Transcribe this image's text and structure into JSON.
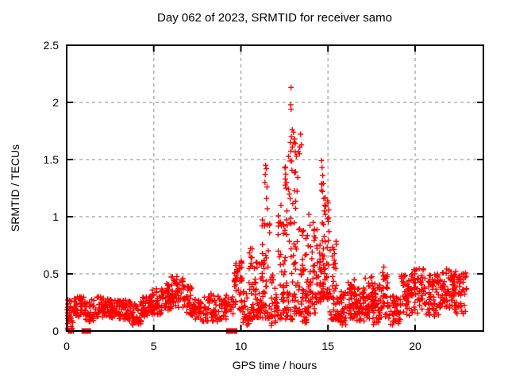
{
  "figure": {
    "background": "#ffffff"
  },
  "chart_data": {
    "type": "scatter",
    "title": "Day 062 of 2023, SRMTID for receiver samo",
    "xlabel": "GPS time / hours",
    "ylabel": "SRMTID / TECUs",
    "xlim": [
      0,
      23.92
    ],
    "ylim": [
      0,
      2.5
    ],
    "xticks": [
      0,
      5,
      10,
      15,
      20
    ],
    "yticks": [
      0,
      0.5,
      1,
      1.5,
      2,
      2.5
    ],
    "ytick_labels": [
      "0",
      "0.5",
      "1",
      "1.5",
      "2",
      "2.5"
    ],
    "xtick_labels": [
      "0",
      "5",
      "10",
      "15",
      "20"
    ],
    "grid": true,
    "legend": "none",
    "marker": "plus",
    "marker_size": 7,
    "marker_color": "#ff0000",
    "grid_color": "#b0b0b0",
    "axis_color": "#000000",
    "series_name": "SRMTID",
    "envelope_bins": [
      [
        0.02,
        0.12,
        0.0,
        0.31,
        12,
        1
      ],
      [
        0.12,
        0.4,
        0.02,
        0.28,
        20,
        0
      ],
      [
        0.4,
        1.0,
        0.12,
        0.3,
        40,
        0
      ],
      [
        1.0,
        1.6,
        0.08,
        0.28,
        42,
        0
      ],
      [
        1.6,
        2.3,
        0.12,
        0.3,
        48,
        0
      ],
      [
        2.3,
        3.0,
        0.1,
        0.28,
        48,
        0
      ],
      [
        3.0,
        3.6,
        0.1,
        0.27,
        45,
        0
      ],
      [
        3.6,
        4.3,
        0.05,
        0.26,
        45,
        0
      ],
      [
        4.3,
        4.9,
        0.12,
        0.31,
        45,
        0
      ],
      [
        4.9,
        5.5,
        0.14,
        0.37,
        45,
        0
      ],
      [
        5.5,
        6.0,
        0.18,
        0.43,
        40,
        0
      ],
      [
        6.0,
        6.7,
        0.2,
        0.48,
        48,
        0
      ],
      [
        6.7,
        7.2,
        0.14,
        0.4,
        35,
        0
      ],
      [
        7.2,
        7.9,
        0.08,
        0.28,
        42,
        0
      ],
      [
        7.9,
        8.7,
        0.08,
        0.33,
        48,
        0
      ],
      [
        8.7,
        9.15,
        0.1,
        0.3,
        28,
        0
      ],
      [
        9.15,
        9.6,
        0.15,
        0.33,
        18,
        0
      ],
      [
        9.6,
        10.1,
        0.18,
        0.62,
        40,
        0
      ],
      [
        10.1,
        10.45,
        0.05,
        0.35,
        24,
        0
      ],
      [
        10.45,
        10.7,
        0.1,
        0.72,
        24,
        3
      ],
      [
        10.7,
        11.2,
        0.12,
        0.62,
        50,
        0
      ],
      [
        11.2,
        11.7,
        0.1,
        1.0,
        45,
        5
      ],
      [
        11.7,
        12.1,
        0.04,
        0.5,
        30,
        4
      ],
      [
        12.1,
        12.5,
        0.1,
        1.05,
        36,
        4
      ],
      [
        12.5,
        13.0,
        0.1,
        1.6,
        55,
        5
      ],
      [
        13.0,
        13.5,
        0.15,
        1.75,
        55,
        5
      ],
      [
        13.5,
        13.8,
        0.07,
        0.95,
        38,
        4
      ],
      [
        13.8,
        14.3,
        0.15,
        1.0,
        45,
        4
      ],
      [
        14.3,
        14.6,
        0.25,
        0.9,
        28,
        3
      ],
      [
        14.6,
        15.1,
        0.28,
        1.5,
        55,
        5
      ],
      [
        15.1,
        15.5,
        0.1,
        0.8,
        40,
        4
      ],
      [
        15.5,
        16.1,
        0.05,
        0.35,
        46,
        0
      ],
      [
        16.1,
        16.6,
        0.1,
        0.46,
        45,
        0
      ],
      [
        16.6,
        17.1,
        0.08,
        0.38,
        45,
        0
      ],
      [
        17.1,
        17.6,
        0.1,
        0.48,
        45,
        0
      ],
      [
        17.6,
        18.1,
        0.05,
        0.42,
        45,
        0
      ],
      [
        18.1,
        18.45,
        0.12,
        0.56,
        32,
        0
      ],
      [
        18.45,
        19.2,
        0.05,
        0.32,
        46,
        0
      ],
      [
        19.2,
        19.8,
        0.12,
        0.5,
        50,
        0
      ],
      [
        19.8,
        20.6,
        0.15,
        0.55,
        58,
        0
      ],
      [
        20.6,
        21.4,
        0.12,
        0.5,
        58,
        0
      ],
      [
        21.4,
        22.2,
        0.2,
        0.55,
        58,
        0
      ],
      [
        22.2,
        22.95,
        0.15,
        0.52,
        55,
        0
      ]
    ],
    "peak_points": [
      [
        12.88,
        2.13
      ],
      [
        12.86,
        1.98
      ],
      [
        12.88,
        1.94
      ],
      [
        12.95,
        1.76
      ],
      [
        13.02,
        1.74
      ],
      [
        12.9,
        1.7
      ],
      [
        13.08,
        1.68
      ],
      [
        12.84,
        1.65
      ],
      [
        13.12,
        1.64
      ],
      [
        12.96,
        1.61
      ],
      [
        13.3,
        1.57
      ],
      [
        13.18,
        1.53
      ],
      [
        11.42,
        1.45
      ],
      [
        11.46,
        1.42
      ],
      [
        11.4,
        1.37
      ],
      [
        11.38,
        1.3
      ],
      [
        11.5,
        1.26
      ],
      [
        11.47,
        1.16
      ],
      [
        11.52,
        1.07
      ],
      [
        14.62,
        1.49
      ],
      [
        14.66,
        1.43
      ],
      [
        14.7,
        1.36
      ],
      [
        14.73,
        1.29
      ],
      [
        14.68,
        1.22
      ],
      [
        14.76,
        1.16
      ],
      [
        14.81,
        1.1
      ],
      [
        14.79,
        1.05
      ],
      [
        14.85,
        1.02
      ],
      [
        12.55,
        1.33
      ],
      [
        12.6,
        1.25
      ],
      [
        12.3,
        1.1
      ],
      [
        13.9,
        1.02
      ],
      [
        15.0,
        1.12
      ],
      [
        15.05,
        1.06
      ],
      [
        10.55,
        0.72
      ],
      [
        18.2,
        0.56
      ]
    ],
    "zero_value_points": [
      0.1,
      0.15,
      0.2,
      0.25,
      0.3,
      0.38
    ],
    "zero_gap_bars": [
      [
        0.85,
        1.4
      ],
      [
        9.15,
        9.8
      ]
    ]
  }
}
